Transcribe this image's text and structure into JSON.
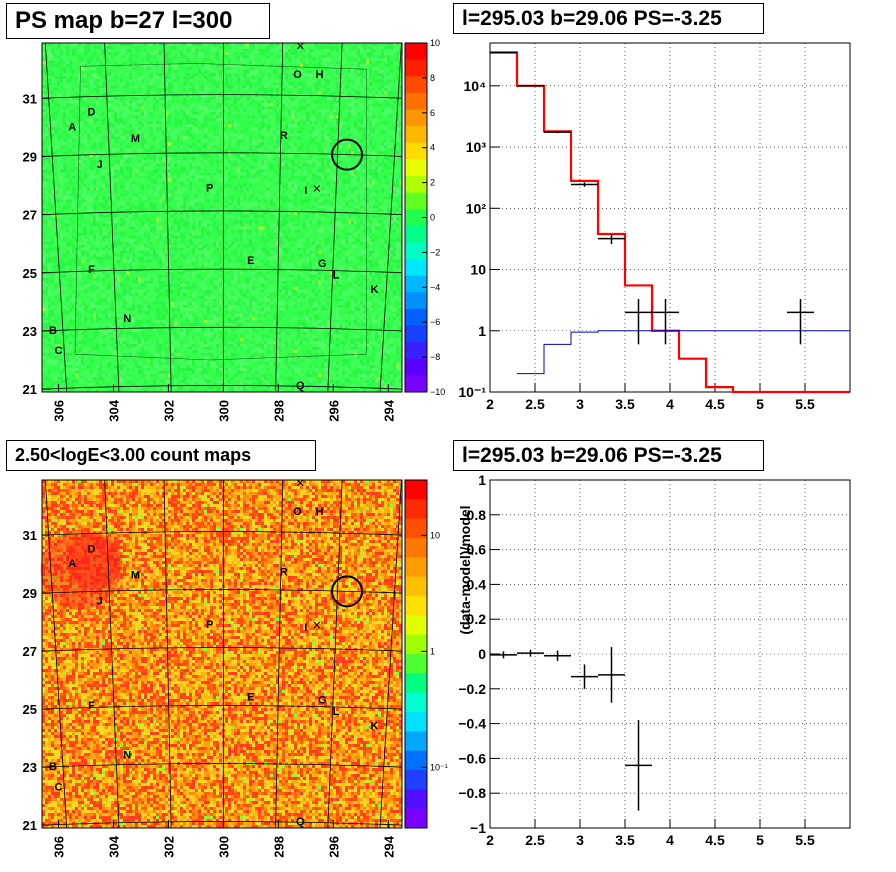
{
  "panels": {
    "ps_map": {
      "title": "PS map b=27 l=300"
    },
    "count_map": {
      "title": "2.50<logE<3.00 count maps"
    },
    "spectrum": {
      "title": "l=295.03 b=29.06 PS=-3.25"
    },
    "residual": {
      "title": "l=295.03 b=29.06 PS=-3.25"
    }
  },
  "map_axes": {
    "y_ticks": [
      "21",
      "23",
      "25",
      "27",
      "29",
      "31"
    ],
    "x_ticks": [
      "306",
      "304",
      "302",
      "300",
      "298",
      "296",
      "294"
    ]
  },
  "source_labels": [
    {
      "text": "O",
      "l": 297.3,
      "b": 31.7
    },
    {
      "text": "H",
      "l": 296.5,
      "b": 31.7
    },
    {
      "text": "D",
      "l": 304.8,
      "b": 30.4
    },
    {
      "text": "A",
      "l": 305.5,
      "b": 29.9
    },
    {
      "text": "M",
      "l": 303.2,
      "b": 29.5
    },
    {
      "text": "R",
      "l": 297.8,
      "b": 29.6
    },
    {
      "text": "J",
      "l": 304.5,
      "b": 28.6
    },
    {
      "text": "P",
      "l": 300.5,
      "b": 27.8
    },
    {
      "text": "I",
      "l": 297.0,
      "b": 27.7
    },
    {
      "text": "E",
      "l": 299.0,
      "b": 25.3
    },
    {
      "text": "F",
      "l": 304.8,
      "b": 25.0
    },
    {
      "text": "G",
      "l": 296.4,
      "b": 25.2
    },
    {
      "text": "L",
      "l": 295.9,
      "b": 24.8
    },
    {
      "text": "K",
      "l": 294.5,
      "b": 24.3
    },
    {
      "text": "N",
      "l": 303.5,
      "b": 23.3
    },
    {
      "text": "B",
      "l": 306.2,
      "b": 22.9
    },
    {
      "text": "C",
      "l": 306.0,
      "b": 22.2
    },
    {
      "text": "Q",
      "l": 297.2,
      "b": 21.0
    }
  ],
  "ps_colorbar": {
    "ticks": [
      "10",
      "8",
      "6",
      "4",
      "2",
      "0",
      "−2",
      "−4",
      "−6",
      "−8",
      "−10"
    ]
  },
  "count_colorbar": {
    "ticks": [
      {
        "label": "10",
        "v": 10
      },
      {
        "label": "1",
        "v": 1
      },
      {
        "label": "10⁻¹",
        "v": 0.1
      }
    ]
  },
  "colors": {
    "model_red": "#ff0000",
    "reference_blue": "#0000cc",
    "data_black": "#000000"
  },
  "chart_data": [
    {
      "type": "line",
      "panel": "spectrum",
      "title": "l=295.03 b=29.06 PS=-3.25",
      "xlim": [
        2,
        6
      ],
      "ylim": [
        0.1,
        50000
      ],
      "yscale": "log",
      "grid": true,
      "x_ticks": [
        "2",
        "2.5",
        "3",
        "3.5",
        "4",
        "4.5",
        "5",
        "5.5"
      ],
      "y_ticks": [
        {
          "label": "10⁻¹",
          "v": 0.1
        },
        {
          "label": "1",
          "v": 1
        },
        {
          "label": "10",
          "v": 10
        },
        {
          "label": "10²",
          "v": 100
        },
        {
          "label": "10³",
          "v": 1000
        },
        {
          "label": "10⁴",
          "v": 10000
        }
      ],
      "series": [
        {
          "role": "model",
          "color": "#ff0000",
          "edges": [
            2,
            2.3,
            2.6,
            2.9,
            3.2,
            3.5,
            3.8,
            4.1,
            4.4,
            4.7,
            5.0,
            6.0
          ],
          "values": [
            35000,
            10000,
            1800,
            280,
            38,
            5.5,
            1.0,
            0.35,
            0.12,
            0.1,
            0.1
          ]
        },
        {
          "role": "reference",
          "color": "#0000cc",
          "edges": [
            2.3,
            2.6,
            2.9,
            3.2,
            3.5,
            6.0
          ],
          "values": [
            0.2,
            0.6,
            0.95,
            1.0,
            1.0
          ]
        },
        {
          "role": "data",
          "color": "#000000",
          "points": [
            {
              "x": 2.15,
              "y": 35000,
              "xerr": 0.15,
              "ylo": 34500,
              "yhi": 35500
            },
            {
              "x": 2.45,
              "y": 10000,
              "xerr": 0.15,
              "ylo": 9800,
              "yhi": 10200
            },
            {
              "x": 2.75,
              "y": 1750,
              "xerr": 0.15,
              "ylo": 1680,
              "yhi": 1820
            },
            {
              "x": 3.05,
              "y": 245,
              "xerr": 0.15,
              "ylo": 225,
              "yhi": 265
            },
            {
              "x": 3.35,
              "y": 32,
              "xerr": 0.15,
              "ylo": 26,
              "yhi": 38
            },
            {
              "x": 3.65,
              "y": 2,
              "xerr": 0.15,
              "ylo": 0.6,
              "yhi": 3.3
            },
            {
              "x": 3.95,
              "y": 2,
              "xerr": 0.15,
              "ylo": 0.6,
              "yhi": 3.3
            },
            {
              "x": 5.45,
              "y": 2,
              "xerr": 0.15,
              "ylo": 0.6,
              "yhi": 3.3
            }
          ]
        }
      ]
    },
    {
      "type": "scatter",
      "panel": "residual",
      "title": "l=295.03 b=29.06 PS=-3.25",
      "ylabel": "(data-model)/model",
      "xlim": [
        2,
        6
      ],
      "ylim": [
        -1,
        1
      ],
      "grid": true,
      "x_ticks": [
        "2",
        "2.5",
        "3",
        "3.5",
        "4",
        "4.5",
        "5",
        "5.5"
      ],
      "y_ticks": [
        {
          "label": "−1",
          "v": -1
        },
        {
          "label": "−0.8",
          "v": -0.8
        },
        {
          "label": "−0.6",
          "v": -0.6
        },
        {
          "label": "−0.4",
          "v": -0.4
        },
        {
          "label": "−0.2",
          "v": -0.2
        },
        {
          "label": "0",
          "v": 0
        },
        {
          "label": "0.2",
          "v": 0.2
        },
        {
          "label": "0.4",
          "v": 0.4
        },
        {
          "label": "0.6",
          "v": 0.6
        },
        {
          "label": "0.8",
          "v": 0.8
        },
        {
          "label": "1",
          "v": 1
        }
      ],
      "points": [
        {
          "x": 2.15,
          "y": -0.005,
          "xerr": 0.15,
          "yerr": 0.02
        },
        {
          "x": 2.45,
          "y": 0.005,
          "xerr": 0.15,
          "yerr": 0.02
        },
        {
          "x": 2.75,
          "y": -0.01,
          "xerr": 0.15,
          "yerr": 0.03
        },
        {
          "x": 3.05,
          "y": -0.13,
          "xerr": 0.15,
          "yerr": 0.07
        },
        {
          "x": 3.35,
          "y": -0.12,
          "xerr": 0.15,
          "yerr": 0.16
        },
        {
          "x": 3.65,
          "y": -0.64,
          "xerr": 0.15,
          "yerr": 0.26
        }
      ]
    }
  ]
}
